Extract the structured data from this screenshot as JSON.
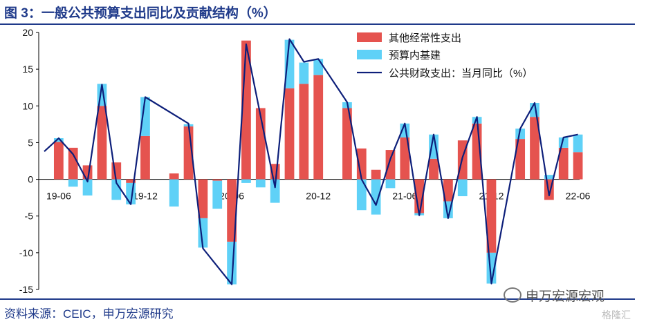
{
  "title": "图 3：一般公共预算支出同比及贡献结构（%）",
  "source": "资料来源：CEIC，申万宏源研究",
  "watermark": "申万宏源宏观",
  "logo_text": "格隆汇",
  "colors": {
    "other": "#e5534f",
    "infra": "#5fd1f7",
    "line": "#0d1f7a",
    "title": "#1f3a8a"
  },
  "chart_data": {
    "type": "bar",
    "subtype": "stacked-bar-with-line",
    "ylim": [
      -15,
      20
    ],
    "yticks": [
      20,
      15,
      10,
      5,
      0,
      -5,
      -10,
      -15
    ],
    "x_tick_labels": [
      "19-06",
      "19-12",
      "20-06",
      "20-12",
      "21-06",
      "21-12",
      "22-06"
    ],
    "categories": [
      "19-05",
      "19-06",
      "19-07",
      "19-08",
      "19-09",
      "19-10",
      "19-11",
      "19-12",
      "20-01",
      "20-02",
      "20-03",
      "20-04",
      "20-05",
      "20-06",
      "20-07",
      "20-08",
      "20-09",
      "20-10",
      "20-11",
      "20-12",
      "21-01",
      "21-02",
      "21-03",
      "21-04",
      "21-05",
      "21-06",
      "21-07",
      "21-08",
      "21-09",
      "21-10",
      "21-11",
      "21-12",
      "22-01",
      "22-02",
      "22-03",
      "22-04",
      "22-05",
      "22-06"
    ],
    "series": [
      {
        "name": "其他经常性支出",
        "kind": "bar",
        "values": [
          null,
          5.1,
          4.3,
          1.9,
          10.0,
          2.3,
          -0.5,
          5.9,
          null,
          0.8,
          7.2,
          -5.3,
          -0.2,
          -8.5,
          18.9,
          9.7,
          2.1,
          12.4,
          13.0,
          14.2,
          null,
          9.7,
          4.2,
          1.3,
          4.0,
          5.7,
          -4.6,
          2.8,
          -3.0,
          5.3,
          7.6,
          -10.0,
          null,
          5.5,
          8.5,
          -2.8,
          4.3,
          3.7
        ]
      },
      {
        "name": "预算内基建",
        "kind": "bar",
        "values": [
          null,
          0.5,
          -1.0,
          -2.2,
          3.0,
          -2.8,
          -2.9,
          5.3,
          null,
          -3.7,
          0.3,
          -4.0,
          -3.8,
          -5.8,
          -0.5,
          -1.1,
          -3.2,
          6.6,
          2.9,
          2.2,
          null,
          0.8,
          -4.2,
          -4.8,
          -1.2,
          1.9,
          -0.3,
          3.3,
          -2.3,
          -2.3,
          0.9,
          -4.2,
          null,
          1.4,
          1.9,
          0.6,
          1.4,
          2.4
        ]
      },
      {
        "name": "公共财政支出：当月同比（%）",
        "kind": "line",
        "values": [
          3.8,
          5.6,
          3.4,
          -0.3,
          12.9,
          -0.5,
          -3.4,
          11.2,
          null,
          null,
          7.6,
          -9.4,
          null,
          -14.3,
          18.4,
          8.6,
          -1.1,
          19.1,
          16.0,
          16.4,
          null,
          10.5,
          0.0,
          -3.5,
          2.8,
          7.6,
          -4.9,
          6.1,
          -5.3,
          3.0,
          8.5,
          -14.2,
          null,
          6.9,
          10.4,
          -2.2,
          5.7,
          6.1
        ]
      }
    ]
  }
}
